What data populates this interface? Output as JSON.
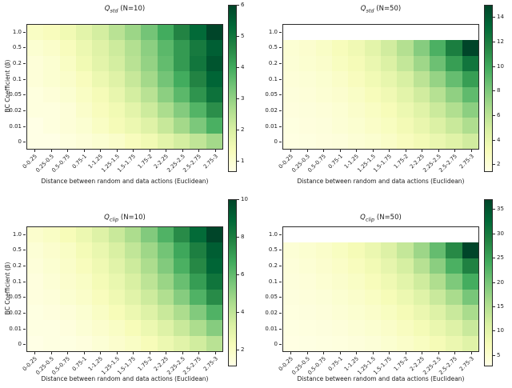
{
  "figure": {
    "background": "#ffffff",
    "xlabel": "Distance between random and data actions (Euclidean)",
    "ylabel": "BC Coefficient (β)",
    "x_tick_labels": [
      "0-0.25",
      "0.25-0.5",
      "0.5-0.75",
      "0.75-1",
      "1-1.25",
      "1.25-1.5",
      "1.5-1.75",
      "1.75-2",
      "2-2.25",
      "2.25-2.5",
      "2.5-2.75",
      "2.75-3"
    ],
    "y_tick_labels": [
      "1.0",
      "0.5",
      "0.2",
      "0.1",
      "0.05",
      "0.02",
      "0.01",
      "0"
    ],
    "colormap": {
      "name": "YlGn",
      "stops": [
        "#ffffe5",
        "#f7fcb9",
        "#d9f0a3",
        "#addd8e",
        "#78c679",
        "#41ab5d",
        "#238443",
        "#006837",
        "#004529"
      ]
    }
  },
  "chart_data": [
    {
      "type": "heatmap",
      "title": {
        "q": "Q",
        "sub": "std",
        "suffix": " (N=10)"
      },
      "vmin": 0.7,
      "vmax": 6.0,
      "colorbar_ticks": [
        1,
        2,
        3,
        4,
        5,
        6
      ],
      "rows": [
        "1.0",
        "0.5",
        "0.2",
        "0.1",
        "0.05",
        "0.02",
        "0.01",
        "0"
      ],
      "cols": [
        "0-0.25",
        "0.25-0.5",
        "0.5-0.75",
        "0.75-1",
        "1-1.25",
        "1.25-1.5",
        "1.5-1.75",
        "1.75-2",
        "2-2.25",
        "2.25-2.5",
        "2.5-2.75",
        "2.75-3"
      ],
      "values": [
        [
          1.2,
          1.3,
          1.5,
          1.8,
          2.1,
          2.5,
          2.9,
          3.4,
          4.0,
          4.7,
          5.3,
          6.0
        ],
        [
          1.0,
          1.1,
          1.3,
          1.6,
          1.9,
          2.2,
          2.6,
          3.1,
          3.7,
          4.3,
          4.9,
          5.5
        ],
        [
          0.9,
          1.0,
          1.2,
          1.5,
          1.8,
          2.1,
          2.5,
          3.0,
          3.6,
          4.3,
          5.0,
          5.7
        ],
        [
          0.9,
          1.0,
          1.1,
          1.3,
          1.6,
          1.9,
          2.3,
          2.8,
          3.4,
          4.0,
          4.7,
          5.4
        ],
        [
          0.8,
          0.9,
          1.0,
          1.2,
          1.4,
          1.7,
          2.1,
          2.5,
          3.1,
          3.7,
          4.4,
          5.1
        ],
        [
          0.8,
          0.8,
          0.9,
          1.1,
          1.3,
          1.5,
          1.8,
          2.2,
          2.7,
          3.2,
          3.8,
          4.5
        ],
        [
          0.7,
          0.8,
          0.9,
          1.0,
          1.2,
          1.4,
          1.6,
          1.9,
          2.3,
          2.8,
          3.3,
          3.9
        ],
        [
          0.7,
          0.7,
          0.8,
          0.9,
          1.0,
          1.1,
          1.3,
          1.5,
          1.8,
          2.1,
          2.4,
          2.8
        ]
      ]
    },
    {
      "type": "heatmap",
      "title": {
        "q": "Q",
        "sub": "std",
        "suffix": " (N=50)"
      },
      "vmin": 1.5,
      "vmax": 15.0,
      "colorbar_ticks": [
        2,
        4,
        6,
        8,
        10,
        12,
        14
      ],
      "rows": [
        "1.0",
        "0.5",
        "0.2",
        "0.1",
        "0.05",
        "0.02",
        "0.01",
        "0"
      ],
      "cols": [
        "0-0.25",
        "0.25-0.5",
        "0.5-0.75",
        "0.75-1",
        "1-1.25",
        "1.25-1.5",
        "1.5-1.75",
        "1.75-2",
        "2-2.25",
        "2.25-2.5",
        "2.5-2.75",
        "2.75-3"
      ],
      "values": [
        [
          null,
          null,
          null,
          null,
          null,
          null,
          null,
          null,
          null,
          null,
          null,
          null
        ],
        [
          2.2,
          2.4,
          2.7,
          3.1,
          3.6,
          4.3,
          5.2,
          6.3,
          7.8,
          9.6,
          12.0,
          15.0
        ],
        [
          2.1,
          2.3,
          2.5,
          2.9,
          3.3,
          3.9,
          4.7,
          5.7,
          7.0,
          8.6,
          10.5,
          12.5
        ],
        [
          2.0,
          2.1,
          2.3,
          2.6,
          3.0,
          3.5,
          4.1,
          4.9,
          6.0,
          7.3,
          8.8,
          10.5
        ],
        [
          1.9,
          2.0,
          2.2,
          2.4,
          2.7,
          3.1,
          3.6,
          4.3,
          5.2,
          6.2,
          7.5,
          9.0
        ],
        [
          1.8,
          1.9,
          2.0,
          2.2,
          2.5,
          2.8,
          3.2,
          3.8,
          4.5,
          5.4,
          6.4,
          7.6
        ],
        [
          1.7,
          1.8,
          1.9,
          2.1,
          2.3,
          2.6,
          2.9,
          3.4,
          4.0,
          4.7,
          5.5,
          6.5
        ],
        [
          1.6,
          1.7,
          1.8,
          1.9,
          2.1,
          2.3,
          2.6,
          3.0,
          3.4,
          3.9,
          4.5,
          5.2
        ]
      ]
    },
    {
      "type": "heatmap",
      "title": {
        "q": "Q",
        "sub": "clip",
        "suffix": " (N=10)"
      },
      "vmin": 1.2,
      "vmax": 10.0,
      "colorbar_ticks": [
        2,
        4,
        6,
        8,
        10
      ],
      "rows": [
        "1.0",
        "0.5",
        "0.2",
        "0.1",
        "0.05",
        "0.02",
        "0.01",
        "0"
      ],
      "cols": [
        "0-0.25",
        "0.25-0.5",
        "0.5-0.75",
        "0.75-1",
        "1-1.25",
        "1.25-1.5",
        "1.5-1.75",
        "1.75-2",
        "2-2.25",
        "2.25-2.5",
        "2.5-2.75",
        "2.75-3"
      ],
      "values": [
        [
          1.8,
          2.0,
          2.3,
          2.7,
          3.2,
          3.8,
          4.5,
          5.4,
          6.4,
          7.6,
          8.8,
          10.0
        ],
        [
          1.6,
          1.8,
          2.0,
          2.4,
          2.8,
          3.4,
          4.0,
          4.8,
          5.7,
          6.8,
          8.0,
          9.2
        ],
        [
          1.5,
          1.7,
          1.9,
          2.2,
          2.6,
          3.1,
          3.7,
          4.5,
          5.4,
          6.5,
          7.7,
          9.0
        ],
        [
          1.4,
          1.6,
          1.8,
          2.0,
          2.4,
          2.8,
          3.4,
          4.1,
          4.9,
          5.9,
          7.1,
          8.4
        ],
        [
          1.4,
          1.5,
          1.7,
          1.9,
          2.2,
          2.6,
          3.1,
          3.7,
          4.4,
          5.3,
          6.4,
          7.6
        ],
        [
          1.3,
          1.4,
          1.5,
          1.7,
          2.0,
          2.3,
          2.7,
          3.2,
          3.8,
          4.5,
          5.4,
          6.4
        ],
        [
          1.3,
          1.3,
          1.4,
          1.6,
          1.8,
          2.0,
          2.3,
          2.7,
          3.2,
          3.8,
          4.5,
          5.3
        ],
        [
          1.2,
          1.3,
          1.3,
          1.4,
          1.6,
          1.8,
          2.0,
          2.3,
          2.7,
          3.1,
          3.6,
          4.2
        ]
      ]
    },
    {
      "type": "heatmap",
      "title": {
        "q": "Q",
        "sub": "clip",
        "suffix": " (N=50)"
      },
      "vmin": 3.0,
      "vmax": 37.0,
      "colorbar_ticks": [
        5,
        10,
        15,
        20,
        25,
        30,
        35
      ],
      "rows": [
        "1.0",
        "0.5",
        "0.2",
        "0.1",
        "0.05",
        "0.02",
        "0.01",
        "0"
      ],
      "cols": [
        "0-0.25",
        "0.25-0.5",
        "0.5-0.75",
        "0.75-1",
        "1-1.25",
        "1.25-1.5",
        "1.5-1.75",
        "1.75-2",
        "2-2.25",
        "2.25-2.5",
        "2.5-2.75",
        "2.75-3"
      ],
      "values": [
        [
          null,
          null,
          null,
          null,
          null,
          null,
          null,
          null,
          null,
          null,
          null,
          null
        ],
        [
          4.5,
          5.0,
          5.6,
          6.5,
          7.6,
          9.0,
          11.0,
          13.5,
          17.0,
          21.5,
          28.0,
          37.0
        ],
        [
          4.2,
          4.6,
          5.2,
          5.9,
          6.8,
          8.0,
          9.6,
          11.8,
          14.8,
          18.5,
          23.5,
          29.0
        ],
        [
          4.0,
          4.3,
          4.8,
          5.4,
          6.1,
          7.1,
          8.4,
          10.2,
          12.5,
          15.5,
          19.5,
          24.0
        ],
        [
          3.8,
          4.1,
          4.4,
          4.9,
          5.5,
          6.3,
          7.4,
          8.8,
          10.6,
          13.0,
          16.0,
          20.0
        ],
        [
          3.6,
          3.8,
          4.1,
          4.5,
          5.0,
          5.6,
          6.5,
          7.6,
          9.0,
          10.8,
          13.0,
          16.0
        ],
        [
          3.4,
          3.6,
          3.8,
          4.1,
          4.5,
          5.0,
          5.7,
          6.6,
          7.7,
          9.1,
          10.8,
          13.0
        ],
        [
          3.2,
          3.3,
          3.5,
          3.7,
          4.0,
          4.4,
          5.0,
          5.7,
          6.5,
          7.6,
          8.9,
          10.5
        ]
      ]
    }
  ]
}
